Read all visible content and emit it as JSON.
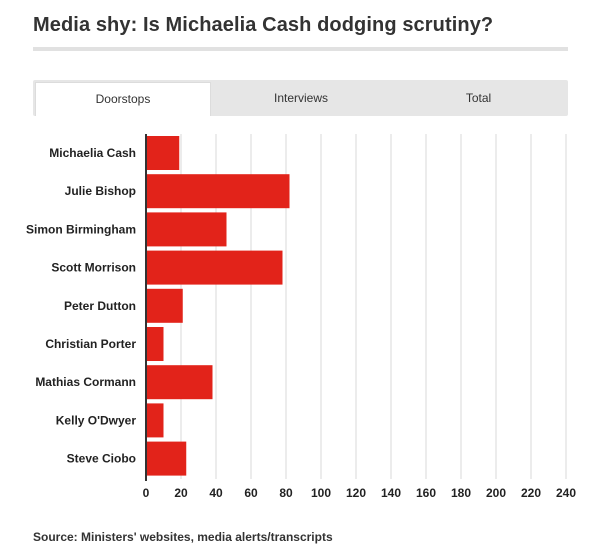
{
  "title": "Media shy: Is Michaelia Cash dodging scrutiny?",
  "tabs": [
    {
      "label": "Doorstops",
      "active": true
    },
    {
      "label": "Interviews",
      "active": false
    },
    {
      "label": "Total",
      "active": false
    }
  ],
  "source": "Source: Ministers' websites, media alerts/transcripts",
  "colors": {
    "bar": "#e2231a",
    "grid": "#d9d9d9",
    "axis": "#333333"
  },
  "chart_data": {
    "type": "bar",
    "orientation": "horizontal",
    "categories": [
      "Michaelia Cash",
      "Julie Bishop",
      "Simon Birmingham",
      "Scott Morrison",
      "Peter Dutton",
      "Christian Porter",
      "Mathias Cormann",
      "Kelly O'Dwyer",
      "Steve Ciobo"
    ],
    "values": [
      19,
      82,
      46,
      78,
      21,
      10,
      38,
      10,
      23
    ],
    "xlim": [
      0,
      240
    ],
    "xticks": [
      0,
      20,
      40,
      60,
      80,
      100,
      120,
      140,
      160,
      180,
      200,
      220,
      240
    ],
    "grid": true,
    "title": "Media shy: Is Michaelia Cash dodging scrutiny?",
    "xlabel": "",
    "ylabel": ""
  }
}
